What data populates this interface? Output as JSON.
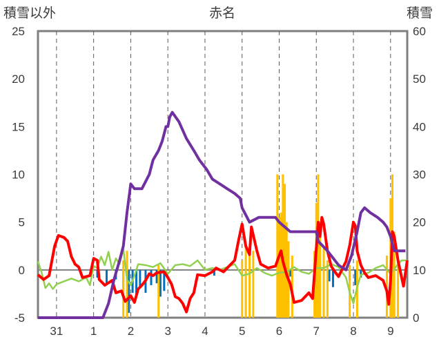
{
  "chart_data": {
    "type": "line",
    "title": "赤名",
    "ylabel_left": "積雪以外",
    "ylabel_right": "積雪",
    "ylim_left": [
      -5,
      25
    ],
    "ylim_right": [
      0,
      60
    ],
    "yticks_left": [
      "25",
      "20",
      "15",
      "10",
      "5",
      "0",
      "-5"
    ],
    "yticks_right": [
      "60",
      "50",
      "40",
      "30",
      "20",
      "10",
      "0"
    ],
    "x_categories": [
      "31",
      "1",
      "2",
      "3",
      "4",
      "5",
      "6",
      "7",
      "8",
      "9"
    ],
    "xlim_days": [
      -0.5,
      9.45
    ],
    "grid": "vertical dashed at day centers, horizontal solid at y=0",
    "series": [
      {
        "axis": "right",
        "style": "line",
        "color": "#7030A0",
        "points": [
          [
            -0.5,
            0
          ],
          [
            0.9,
            0
          ],
          [
            1.25,
            0
          ],
          [
            1.4,
            3
          ],
          [
            1.55,
            8
          ],
          [
            1.7,
            12
          ],
          [
            1.8,
            15
          ],
          [
            1.9,
            22
          ],
          [
            2.0,
            28
          ],
          [
            2.1,
            27
          ],
          [
            2.3,
            27
          ],
          [
            2.5,
            30
          ],
          [
            2.6,
            33
          ],
          [
            2.75,
            35
          ],
          [
            2.85,
            37
          ],
          [
            2.95,
            40
          ],
          [
            3.0,
            40
          ],
          [
            3.05,
            42
          ],
          [
            3.12,
            43
          ],
          [
            3.3,
            41
          ],
          [
            3.5,
            37.5
          ],
          [
            3.7,
            35
          ],
          [
            3.85,
            33
          ],
          [
            4.05,
            31
          ],
          [
            4.2,
            29
          ],
          [
            4.4,
            28
          ],
          [
            4.6,
            27
          ],
          [
            4.8,
            26
          ],
          [
            4.95,
            25
          ],
          [
            5.0,
            23
          ],
          [
            5.2,
            20
          ],
          [
            5.45,
            21
          ],
          [
            5.9,
            21
          ],
          [
            6.0,
            20
          ],
          [
            6.3,
            18
          ],
          [
            7.0,
            18
          ],
          [
            7.05,
            16
          ],
          [
            7.3,
            14
          ],
          [
            7.6,
            11
          ],
          [
            7.8,
            10
          ],
          [
            7.95,
            13
          ],
          [
            8.1,
            18
          ],
          [
            8.2,
            22
          ],
          [
            8.3,
            23
          ],
          [
            8.45,
            22
          ],
          [
            8.65,
            21
          ],
          [
            8.8,
            20
          ],
          [
            8.9,
            19
          ],
          [
            9.0,
            17
          ],
          [
            9.1,
            14
          ],
          [
            9.2,
            14
          ],
          [
            9.4,
            14
          ]
        ]
      },
      {
        "axis": "left",
        "style": "line",
        "color": "#FF0000",
        "points": [
          [
            -0.5,
            -0.5
          ],
          [
            -0.35,
            -1
          ],
          [
            -0.2,
            -0.6
          ],
          [
            -0.05,
            2.5
          ],
          [
            0.05,
            3.6
          ],
          [
            0.2,
            3.4
          ],
          [
            0.3,
            3
          ],
          [
            0.4,
            1.4
          ],
          [
            0.5,
            0.6
          ],
          [
            0.6,
            0.3
          ],
          [
            0.7,
            -0.8
          ],
          [
            0.9,
            -0.6
          ],
          [
            1.0,
            1.2
          ],
          [
            1.1,
            1.0
          ],
          [
            1.15,
            -1
          ],
          [
            1.3,
            -1.6
          ],
          [
            1.5,
            -1.1
          ],
          [
            1.6,
            -2.4
          ],
          [
            1.75,
            -2.2
          ],
          [
            1.85,
            -3.3
          ],
          [
            2.0,
            -2.7
          ],
          [
            2.1,
            -3.4
          ],
          [
            2.2,
            -2.0
          ],
          [
            2.3,
            -1.6
          ],
          [
            2.4,
            -1.1
          ],
          [
            2.5,
            -0.4
          ],
          [
            2.6,
            -0.6
          ],
          [
            2.7,
            -0.3
          ],
          [
            2.9,
            -0.2
          ],
          [
            3.0,
            -0.8
          ],
          [
            3.1,
            -1.5
          ],
          [
            3.2,
            -2.8
          ],
          [
            3.3,
            -3.0
          ],
          [
            3.4,
            -3.5
          ],
          [
            3.5,
            -4.4
          ],
          [
            3.6,
            -3.0
          ],
          [
            3.7,
            -2.4
          ],
          [
            3.8,
            -0.5
          ],
          [
            4.0,
            -0.6
          ],
          [
            4.2,
            -0.2
          ],
          [
            4.3,
            0.2
          ],
          [
            4.5,
            -0.2
          ],
          [
            4.7,
            0.6
          ],
          [
            4.8,
            1.0
          ],
          [
            4.9,
            3.0
          ],
          [
            5.0,
            4.8
          ],
          [
            5.1,
            2.5
          ],
          [
            5.2,
            1.6
          ],
          [
            5.25,
            4.5
          ],
          [
            5.4,
            2.0
          ],
          [
            5.5,
            0.6
          ],
          [
            5.7,
            0.2
          ],
          [
            5.9,
            0.4
          ],
          [
            6.0,
            1.5
          ],
          [
            6.05,
            2.0
          ],
          [
            6.1,
            0.9
          ],
          [
            6.2,
            -0.5
          ],
          [
            6.3,
            -1.5
          ],
          [
            6.4,
            -3.4
          ],
          [
            6.6,
            -3.2
          ],
          [
            6.8,
            -2.4
          ],
          [
            6.9,
            -3.0
          ],
          [
            7.0,
            2.3
          ],
          [
            7.05,
            5.0
          ],
          [
            7.1,
            3.5
          ],
          [
            7.15,
            5.5
          ],
          [
            7.2,
            4.8
          ],
          [
            7.3,
            2.0
          ],
          [
            7.4,
            0.4
          ],
          [
            7.5,
            -0.2
          ],
          [
            7.6,
            -0.7
          ],
          [
            7.7,
            0.1
          ],
          [
            7.8,
            0.9
          ],
          [
            7.9,
            2.6
          ],
          [
            8.0,
            5.0
          ],
          [
            8.05,
            4.6
          ],
          [
            8.1,
            2.0
          ],
          [
            8.2,
            0.5
          ],
          [
            8.3,
            -0.3
          ],
          [
            8.4,
            -0.8
          ],
          [
            8.6,
            -0.6
          ],
          [
            8.8,
            -1.1
          ],
          [
            8.9,
            -2.2
          ],
          [
            8.95,
            -3.6
          ],
          [
            9.0,
            -1.2
          ],
          [
            9.05,
            4.0
          ],
          [
            9.1,
            3.5
          ],
          [
            9.2,
            1.0
          ],
          [
            9.3,
            -0.8
          ],
          [
            9.35,
            -1.7
          ],
          [
            9.45,
            1.0
          ]
        ]
      },
      {
        "axis": "left",
        "style": "line",
        "color": "#92D050",
        "points": [
          [
            -0.5,
            0.9
          ],
          [
            -0.4,
            -0.3
          ],
          [
            -0.3,
            -1.9
          ],
          [
            -0.2,
            -1.4
          ],
          [
            -0.1,
            -2.0
          ],
          [
            0.0,
            -1.5
          ],
          [
            0.2,
            -1.2
          ],
          [
            0.4,
            -0.9
          ],
          [
            0.6,
            -1.2
          ],
          [
            0.8,
            -0.8
          ],
          [
            0.9,
            -1.6
          ],
          [
            1.0,
            0.4
          ],
          [
            1.1,
            0.2
          ],
          [
            1.2,
            1.4
          ],
          [
            1.3,
            0.5
          ],
          [
            1.4,
            1.9
          ],
          [
            1.5,
            0.0
          ],
          [
            1.6,
            1.2
          ],
          [
            1.7,
            0.6
          ],
          [
            1.8,
            2.2
          ],
          [
            1.9,
            -1.0
          ],
          [
            2.0,
            -1.6
          ],
          [
            2.1,
            -0.6
          ],
          [
            2.2,
            0.6
          ],
          [
            2.4,
            0.5
          ],
          [
            2.6,
            0.3
          ],
          [
            2.8,
            0.7
          ],
          [
            3.0,
            -0.4
          ],
          [
            3.2,
            0.5
          ],
          [
            3.4,
            0.6
          ],
          [
            3.6,
            0.4
          ],
          [
            3.8,
            1.0
          ],
          [
            4.0,
            0.0
          ],
          [
            4.2,
            0.2
          ],
          [
            4.4,
            0.0
          ],
          [
            4.6,
            0.3
          ],
          [
            4.8,
            0.6
          ],
          [
            5.0,
            -0.6
          ],
          [
            5.2,
            -0.4
          ],
          [
            5.4,
            0.2
          ],
          [
            5.6,
            -0.3
          ],
          [
            5.8,
            -0.6
          ],
          [
            6.0,
            -0.3
          ],
          [
            6.2,
            -0.2
          ],
          [
            6.4,
            0.3
          ],
          [
            6.6,
            -0.2
          ],
          [
            6.8,
            -0.4
          ],
          [
            7.0,
            0.2
          ],
          [
            7.2,
            0.2
          ],
          [
            7.4,
            0.6
          ],
          [
            7.6,
            0.3
          ],
          [
            7.8,
            -0.8
          ],
          [
            7.9,
            -2.4
          ],
          [
            8.0,
            -3.5
          ],
          [
            8.1,
            -1.8
          ],
          [
            8.2,
            -0.5
          ],
          [
            8.4,
            -0.3
          ],
          [
            8.6,
            0.2
          ],
          [
            8.8,
            0.5
          ],
          [
            9.0,
            -0.4
          ],
          [
            9.2,
            0.6
          ],
          [
            9.3,
            1.0
          ],
          [
            9.45,
            1.0
          ]
        ]
      },
      {
        "axis": "left",
        "style": "bar",
        "color": "#0070C0",
        "points": [
          [
            1.1,
            -0.8
          ],
          [
            1.35,
            -1.5
          ],
          [
            1.6,
            -1.0
          ],
          [
            1.8,
            -2.8
          ],
          [
            1.9,
            -1.6
          ],
          [
            1.95,
            -4.5
          ],
          [
            2.05,
            -2.4
          ],
          [
            2.15,
            -2.8
          ],
          [
            2.25,
            -1.8
          ],
          [
            2.4,
            -2.4
          ],
          [
            2.55,
            -1.6
          ],
          [
            2.7,
            -1.4
          ],
          [
            2.8,
            -2.8
          ],
          [
            2.9,
            -2.2
          ],
          [
            4.25,
            -0.6
          ],
          [
            6.3,
            -0.7
          ],
          [
            7.35,
            -1.2
          ],
          [
            7.45,
            -1.8
          ],
          [
            7.9,
            -1.1
          ],
          [
            8.05,
            -1.6
          ],
          [
            8.2,
            -0.8
          ]
        ]
      },
      {
        "axis": "right",
        "style": "bar",
        "color": "#FFC000",
        "points": [
          [
            1.8,
            12
          ],
          [
            1.9,
            14
          ],
          [
            2.75,
            11
          ],
          [
            5.0,
            12
          ],
          [
            5.1,
            15
          ],
          [
            5.2,
            14
          ],
          [
            5.3,
            14
          ],
          [
            5.95,
            30
          ],
          [
            6.0,
            21
          ],
          [
            6.05,
            22
          ],
          [
            6.1,
            30
          ],
          [
            6.15,
            28
          ],
          [
            6.2,
            20
          ],
          [
            6.25,
            16
          ],
          [
            6.35,
            13
          ],
          [
            6.95,
            14
          ],
          [
            7.0,
            24
          ],
          [
            7.05,
            30
          ],
          [
            7.1,
            20
          ],
          [
            7.2,
            15
          ],
          [
            7.3,
            12
          ],
          [
            7.9,
            11
          ],
          [
            8.1,
            12
          ],
          [
            8.9,
            13
          ],
          [
            9.0,
            25
          ],
          [
            9.05,
            30
          ],
          [
            9.1,
            18
          ],
          [
            9.2,
            12
          ]
        ]
      }
    ]
  }
}
